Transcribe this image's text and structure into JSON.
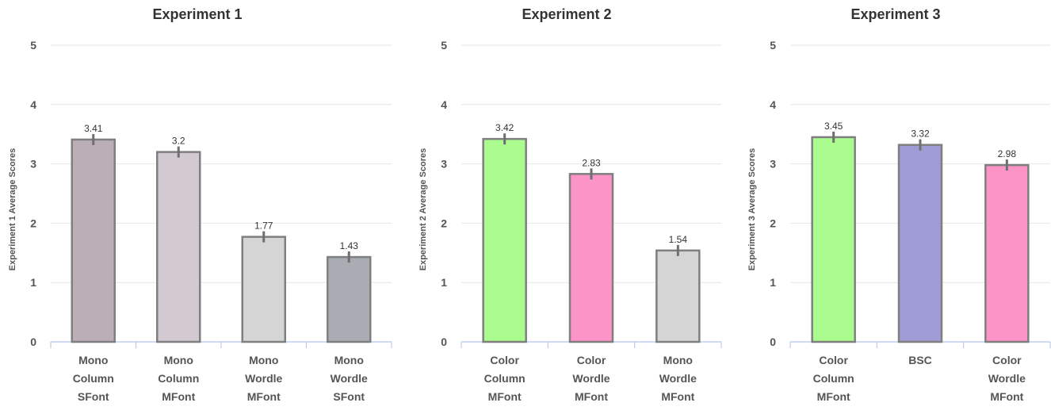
{
  "chart_data": [
    {
      "type": "bar",
      "title": "Experiment 1",
      "ylabel": "Experiment 1 Average Scores",
      "xlabel": "",
      "ylim": [
        0,
        5
      ],
      "yticks": [
        0,
        1,
        2,
        3,
        4,
        5
      ],
      "grid": true,
      "categories": [
        [
          "Mono",
          "Column",
          "SFont"
        ],
        [
          "Mono",
          "Column",
          "MFont"
        ],
        [
          "Mono",
          "Wordle",
          "MFont"
        ],
        [
          "Mono",
          "Wordle",
          "SFont"
        ]
      ],
      "values": [
        3.41,
        3.2,
        1.77,
        1.43
      ],
      "data_labels": [
        "3.41",
        "3.2",
        "1.77",
        "1.43"
      ],
      "bar_colors": [
        "#bcaeb7",
        "#d2cad0",
        "#d5d5d5",
        "#a9adb3"
      ]
    },
    {
      "type": "bar",
      "title": "Experiment 2",
      "ylabel": "Experiment 2 Average Scores",
      "xlabel": "",
      "ylim": [
        0,
        5
      ],
      "yticks": [
        0,
        1,
        2,
        3,
        4,
        5
      ],
      "grid": true,
      "categories": [
        [
          "Color",
          "Column",
          "MFont"
        ],
        [
          "Color",
          "Wordle",
          "MFont"
        ],
        [
          "Mono",
          "Wordle",
          "MFont"
        ]
      ],
      "values": [
        3.42,
        2.83,
        1.54
      ],
      "data_labels": [
        "3.42",
        "2.83",
        "1.54"
      ],
      "bar_colors": [
        "#abfc8f",
        "#fd94c7",
        "#d5d5d5"
      ]
    },
    {
      "type": "bar",
      "title": "Experiment 3",
      "ylabel": "Experiment 3 Average Scores",
      "xlabel": "",
      "ylim": [
        0,
        5
      ],
      "yticks": [
        0,
        1,
        2,
        3,
        4,
        5
      ],
      "grid": true,
      "categories": [
        [
          "Color",
          "Column",
          "MFont"
        ],
        [
          "BSC"
        ],
        [
          "Color",
          "Wordle",
          "MFont"
        ]
      ],
      "values": [
        3.45,
        3.32,
        2.98
      ],
      "data_labels": [
        "3.45",
        "3.32",
        "2.98"
      ],
      "bar_colors": [
        "#abfc8f",
        "#a09dd6",
        "#fd94c7"
      ]
    }
  ],
  "colors": {
    "bar_stroke": "#7f7f7f",
    "error_bar": "#6f6f6f",
    "grid": "#e6e6e6",
    "axis": "#b4c3e6"
  }
}
